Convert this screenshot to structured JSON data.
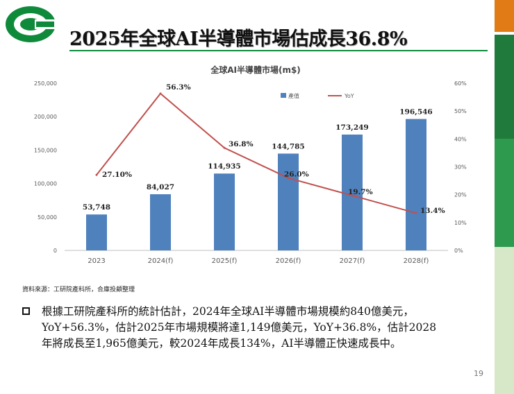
{
  "slide": {
    "title": "2025年全球AI半導體市場估成長36.8%",
    "source": "資料來源：工研院產科所，合庫投顧整理",
    "bullet_lines": [
      "根據工研院產科所的統計估計，2024年全球AI半導體市場規模約840億美元，",
      "YoY+56.3%，估計2025年市場規模將達1,149億美元，YoY+36.8%，估計2028",
      "年將成長至1,965億美元，較2024年成長134%，AI半導體正快速成長中。"
    ],
    "page_number": "19"
  },
  "colors": {
    "bar": "#4f81bd",
    "line": "#c0504d",
    "title_rule": "#0a8a3a",
    "strip_orange": "#e07b16",
    "strip_dark_green": "#1f7a3c",
    "strip_mid_green": "#2e9a4e",
    "strip_light_green": "#d7e8c9",
    "logo_green": "#0f8a3b"
  },
  "chart_data": {
    "type": "bar+line",
    "title": "全球AI半導體市場(m$)",
    "categories": [
      "2023",
      "2024(f)",
      "2025(f)",
      "2026(f)",
      "2027(f)",
      "2028(f)"
    ],
    "series": [
      {
        "name": "產值",
        "type": "bar",
        "axis": "left",
        "values": [
          53748,
          84027,
          114935,
          144785,
          173249,
          196546
        ],
        "labels": [
          "53,748",
          "84,027",
          "114,935",
          "144,785",
          "173,249",
          "196,546"
        ]
      },
      {
        "name": "YoY",
        "type": "line",
        "axis": "right",
        "values": [
          27.1,
          56.3,
          36.8,
          26.0,
          19.7,
          13.4
        ],
        "labels": [
          "27.10%",
          "56.3%",
          "36.8%",
          "26.0%",
          "19.7%",
          "13.4%"
        ]
      }
    ],
    "y_left": {
      "range": [
        0,
        250000
      ],
      "ticks": [
        0,
        50000,
        100000,
        150000,
        200000,
        250000
      ],
      "tick_labels": [
        "0",
        "50,000",
        "100,000",
        "150,000",
        "200,000",
        "250,000"
      ]
    },
    "y_right": {
      "range": [
        0,
        60
      ],
      "ticks": [
        0,
        10,
        20,
        30,
        40,
        50,
        60
      ],
      "tick_labels": [
        "0%",
        "10%",
        "20%",
        "30%",
        "40%",
        "50%",
        "60%"
      ]
    },
    "legend": [
      "產值",
      "YoY"
    ],
    "legend_position": "top-right",
    "grid": false
  }
}
